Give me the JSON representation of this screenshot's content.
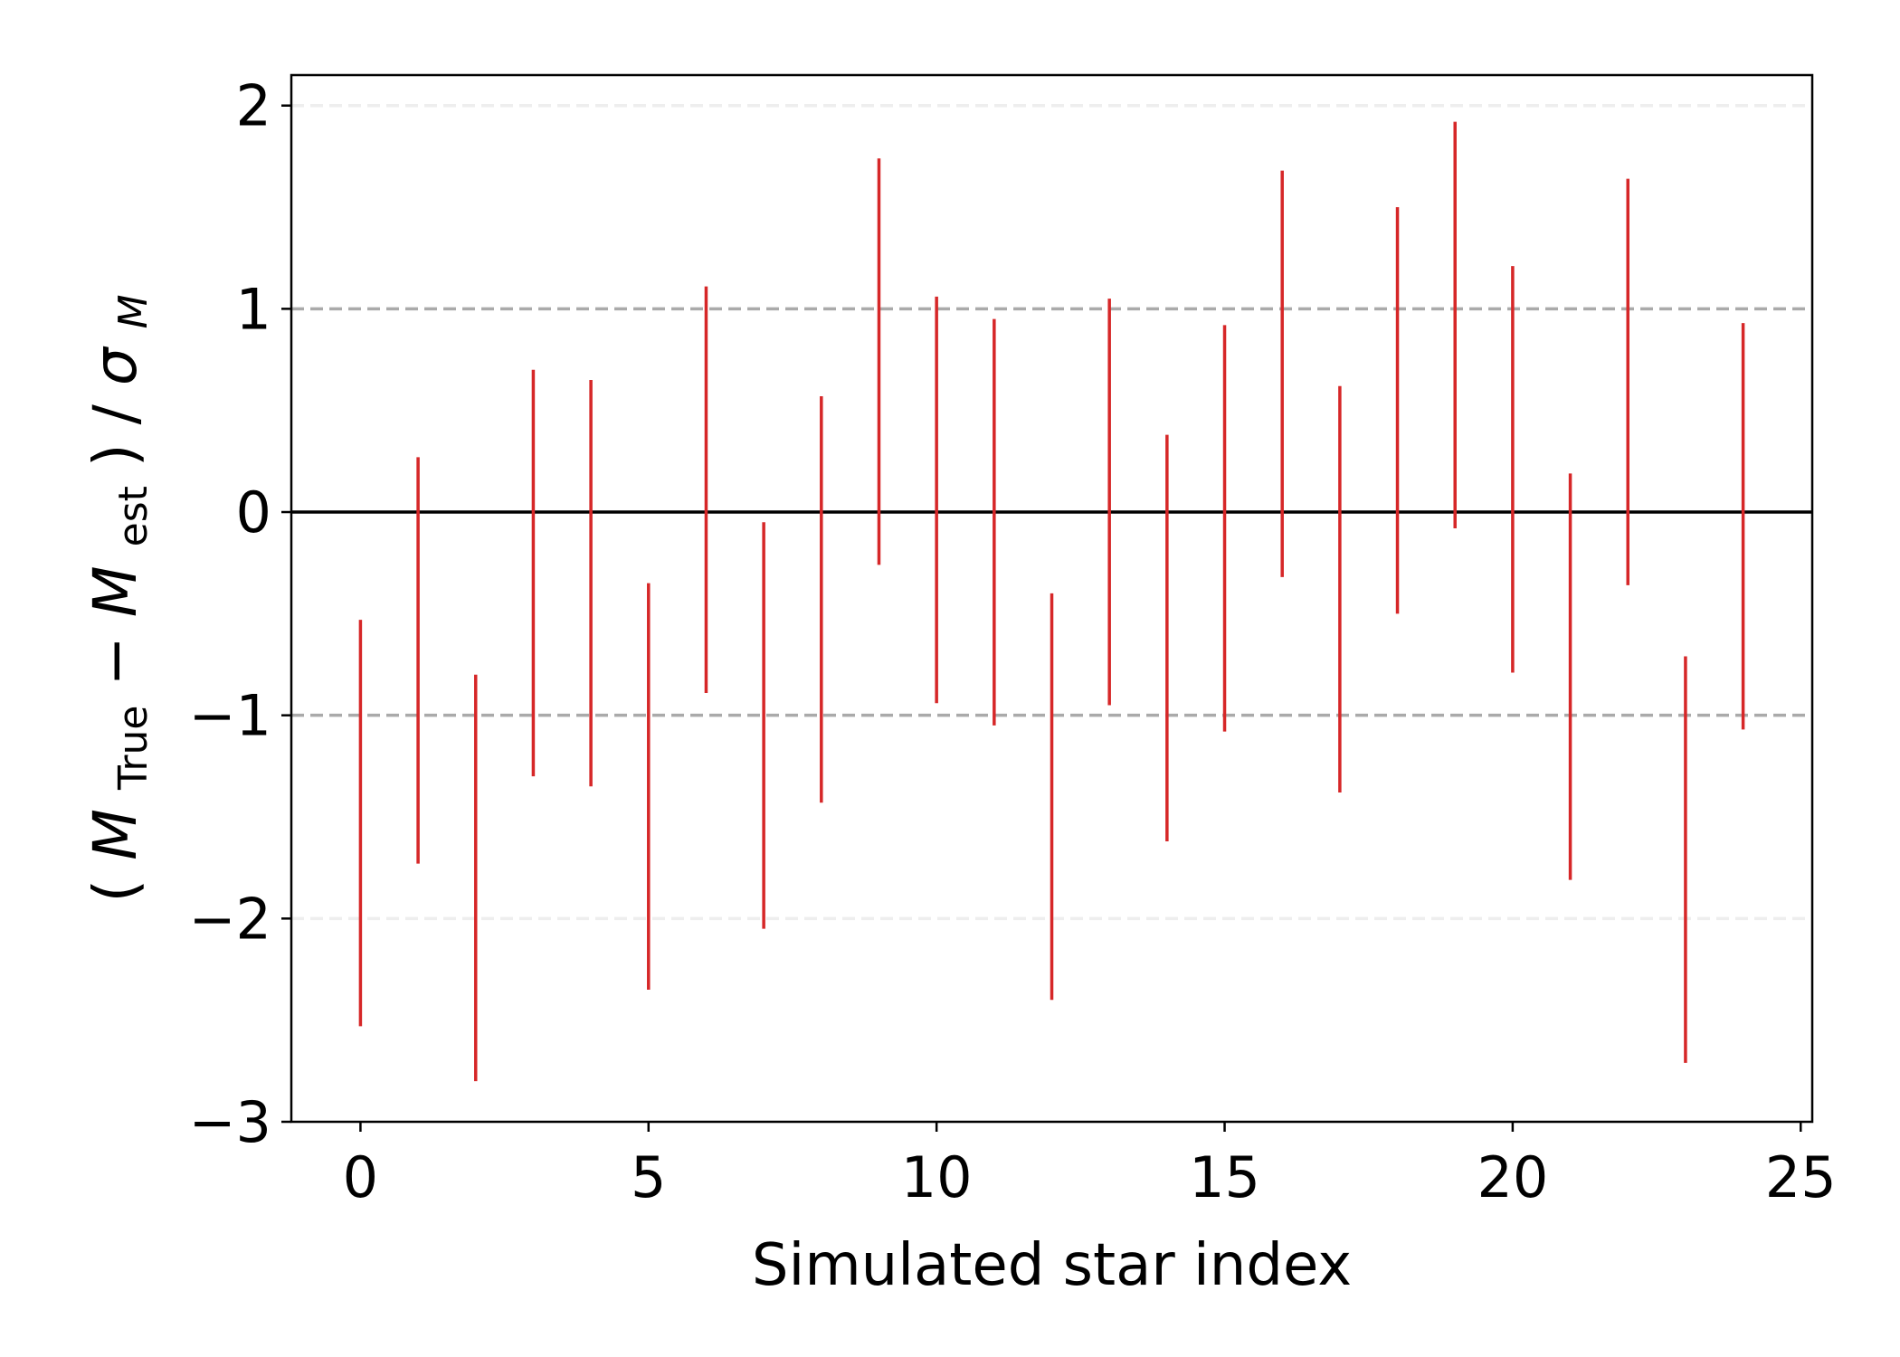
{
  "chart_data": {
    "type": "errorbar",
    "title": "",
    "xlabel": "Simulated star index",
    "ylabel": {
      "open": "(",
      "m1": "M",
      "sub1": "True",
      "minus": " − ",
      "m2": "M",
      "sub2": "est",
      "close": ")",
      "slash": " / ",
      "sigma": "σ",
      "subsigma": "M"
    },
    "xlim": [
      -1.2,
      25.2
    ],
    "ylim": [
      -3.0,
      2.15
    ],
    "xticks": [
      0,
      5,
      10,
      15,
      20,
      25
    ],
    "xtick_labels": [
      "0",
      "5",
      "10",
      "15",
      "20",
      "25"
    ],
    "yticks": [
      -3,
      -2,
      -1,
      0,
      1,
      2
    ],
    "ytick_labels": [
      "−3",
      "−2",
      "−1",
      "0",
      "1",
      "2"
    ],
    "grid": false,
    "reference_lines": [
      {
        "y": 0,
        "style": "solid",
        "color": "#000000"
      },
      {
        "y": 1,
        "style": "dashed",
        "color": "#aaaaaa"
      },
      {
        "y": -1,
        "style": "dashed",
        "color": "#aaaaaa"
      },
      {
        "y": 2,
        "style": "dashed",
        "color": "#eeeeee"
      },
      {
        "y": -2,
        "style": "dashed",
        "color": "#eeeeee"
      }
    ],
    "series": [
      {
        "color": "#d62728",
        "x": [
          0,
          1,
          2,
          3,
          4,
          5,
          6,
          7,
          8,
          9,
          10,
          11,
          12,
          13,
          14,
          15,
          16,
          17,
          18,
          19,
          20,
          21,
          22,
          23,
          24
        ],
        "low": [
          -2.53,
          -1.73,
          -2.8,
          -1.3,
          -1.35,
          -2.35,
          -0.89,
          -2.05,
          -1.43,
          -0.26,
          -0.94,
          -1.05,
          -2.4,
          -0.95,
          -1.62,
          -1.08,
          -0.32,
          -1.38,
          -0.5,
          -0.08,
          -0.79,
          -1.81,
          -0.36,
          -2.71,
          -1.07
        ],
        "high": [
          -0.53,
          0.27,
          -0.8,
          0.7,
          0.65,
          -0.35,
          1.11,
          -0.05,
          0.57,
          1.74,
          1.06,
          0.95,
          -0.4,
          1.05,
          0.38,
          0.92,
          1.68,
          0.62,
          1.5,
          1.92,
          1.21,
          0.19,
          1.64,
          -0.71,
          0.93
        ]
      }
    ],
    "colors": {
      "frame": "#000000",
      "bars": "#d62728"
    }
  }
}
